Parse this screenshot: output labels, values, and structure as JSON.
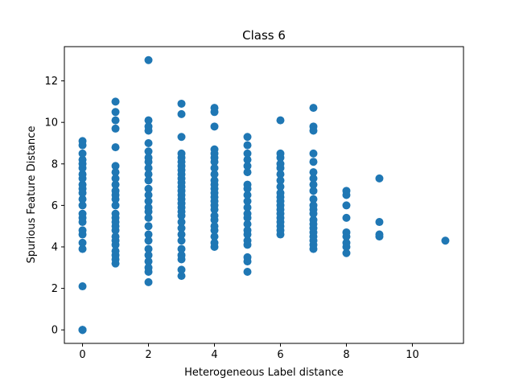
{
  "chart_data": {
    "type": "scatter",
    "title": "Class 6",
    "xlabel": "Heterogeneous Label distance",
    "ylabel": "Spurious Feature Distance",
    "xlim": [
      -0.55,
      11.55
    ],
    "ylim": [
      -0.65,
      13.65
    ],
    "xticks": [
      0,
      2,
      4,
      6,
      8,
      10
    ],
    "yticks": [
      0,
      2,
      4,
      6,
      8,
      10,
      12
    ],
    "grid": false,
    "marker_color": "#1f77b4",
    "groups": [
      {
        "x": 0,
        "y": [
          0,
          0,
          0,
          2.1,
          3.9,
          4.2,
          4.6,
          4.8,
          5.2,
          5.4,
          5.6,
          6.0,
          6.3,
          6.6,
          6.8,
          7.0,
          7.3,
          7.5,
          7.8,
          8.0,
          8.2,
          8.5,
          8.9,
          9.1
        ]
      },
      {
        "x": 1,
        "y": [
          3.2,
          3.4,
          3.6,
          3.8,
          4.1,
          4.3,
          4.5,
          4.8,
          5.0,
          5.2,
          5.4,
          5.6,
          6.0,
          6.3,
          6.5,
          6.7,
          7.0,
          7.3,
          7.6,
          7.9,
          8.8,
          9.7,
          10.1,
          10.5,
          11.0
        ]
      },
      {
        "x": 2,
        "y": [
          2.3,
          2.8,
          3.0,
          3.3,
          3.6,
          3.9,
          4.3,
          4.6,
          5.0,
          5.4,
          5.7,
          5.9,
          6.2,
          6.5,
          6.8,
          7.2,
          7.5,
          7.8,
          8.1,
          8.3,
          8.6,
          9.0,
          9.6,
          9.8,
          10.1,
          13.0
        ]
      },
      {
        "x": 3,
        "y": [
          2.6,
          2.9,
          3.4,
          3.6,
          3.9,
          4.3,
          4.6,
          4.9,
          5.2,
          5.5,
          5.7,
          5.9,
          6.1,
          6.3,
          6.5,
          6.7,
          6.9,
          7.1,
          7.3,
          7.5,
          7.7,
          7.9,
          8.1,
          8.3,
          8.5,
          9.3,
          10.4,
          10.9
        ]
      },
      {
        "x": 4,
        "y": [
          4.0,
          4.2,
          4.5,
          4.8,
          5.0,
          5.3,
          5.5,
          5.8,
          6.0,
          6.2,
          6.4,
          6.6,
          6.8,
          7.0,
          7.2,
          7.5,
          7.8,
          8.1,
          8.3,
          8.5,
          8.7,
          9.8,
          10.5,
          10.7
        ]
      },
      {
        "x": 5,
        "y": [
          2.8,
          3.3,
          3.5,
          4.1,
          4.3,
          4.6,
          4.8,
          5.1,
          5.4,
          5.6,
          5.9,
          6.2,
          6.5,
          6.8,
          7.0,
          7.6,
          7.9,
          8.2,
          8.5,
          8.9,
          9.3
        ]
      },
      {
        "x": 6,
        "y": [
          4.6,
          4.8,
          5.0,
          5.2,
          5.4,
          5.6,
          5.8,
          6.0,
          6.2,
          6.4,
          6.6,
          6.9,
          7.2,
          7.5,
          7.8,
          8.0,
          8.3,
          8.5,
          10.1
        ]
      },
      {
        "x": 7,
        "y": [
          3.9,
          4.1,
          4.3,
          4.5,
          4.7,
          4.9,
          5.1,
          5.3,
          5.6,
          5.8,
          6.0,
          6.3,
          6.7,
          7.0,
          7.3,
          7.6,
          8.1,
          8.5,
          9.6,
          9.8,
          10.7
        ]
      },
      {
        "x": 8,
        "y": [
          3.7,
          4.0,
          4.2,
          4.5,
          4.7,
          5.4,
          6.0,
          6.5,
          6.7
        ]
      },
      {
        "x": 9,
        "y": [
          4.5,
          4.6,
          5.2,
          7.3
        ]
      },
      {
        "x": 11,
        "y": [
          4.3
        ]
      }
    ]
  }
}
